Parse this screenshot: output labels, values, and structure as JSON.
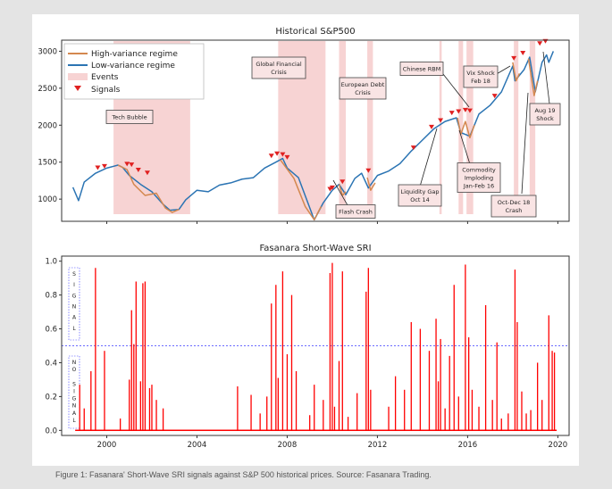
{
  "caption": "Figure 1: Fasanara' Short-Wave SRI signals against S&P 500 historical prices.  Source: Fasanara Trading.",
  "colors": {
    "high_variance": "#d4884f",
    "low_variance": "#2b74b3",
    "events": "#f7d3d3",
    "signals": "#e02020",
    "sri": "#ff0000",
    "threshold": "#3b3bff"
  },
  "chart_data": [
    {
      "type": "line",
      "title": "Historical S&P500",
      "xlim": [
        1998,
        2020.5
      ],
      "ylim": [
        700,
        3150
      ],
      "yticks": [
        1000,
        1500,
        2000,
        2500,
        3000
      ],
      "legend": {
        "placement": "top-left",
        "entries": [
          "High-variance regime",
          "Low-variance regime",
          "Events",
          "Signals"
        ]
      },
      "series": [
        {
          "name": "Low-variance regime",
          "points": [
            [
              1998.5,
              1160
            ],
            [
              1998.75,
              980
            ],
            [
              1999.0,
              1230
            ],
            [
              1999.5,
              1350
            ],
            [
              2000.0,
              1420
            ],
            [
              2000.5,
              1460
            ],
            [
              2000.7,
              1430
            ],
            [
              2001.0,
              1320
            ],
            [
              2001.5,
              1200
            ],
            [
              2002.0,
              1100
            ],
            [
              2002.5,
              930
            ],
            [
              2002.8,
              850
            ],
            [
              2003.2,
              860
            ],
            [
              2003.5,
              990
            ],
            [
              2004.0,
              1120
            ],
            [
              2004.5,
              1100
            ],
            [
              2005.0,
              1190
            ],
            [
              2005.5,
              1220
            ],
            [
              2006.0,
              1270
            ],
            [
              2006.5,
              1290
            ],
            [
              2007.0,
              1420
            ],
            [
              2007.5,
              1500
            ],
            [
              2007.8,
              1550
            ],
            [
              2008.0,
              1420
            ],
            [
              2008.5,
              1290
            ],
            [
              2009.2,
              720
            ],
            [
              2009.6,
              950
            ],
            [
              2010.0,
              1120
            ],
            [
              2010.3,
              1200
            ],
            [
              2010.6,
              1060
            ],
            [
              2011.0,
              1280
            ],
            [
              2011.3,
              1350
            ],
            [
              2011.6,
              1150
            ],
            [
              2012.0,
              1320
            ],
            [
              2012.5,
              1380
            ],
            [
              2013.0,
              1480
            ],
            [
              2013.5,
              1650
            ],
            [
              2014.0,
              1800
            ],
            [
              2014.5,
              1950
            ],
            [
              2015.0,
              2050
            ],
            [
              2015.5,
              2100
            ],
            [
              2015.7,
              1900
            ],
            [
              2016.1,
              1850
            ],
            [
              2016.5,
              2150
            ],
            [
              2017.0,
              2270
            ],
            [
              2017.5,
              2450
            ],
            [
              2018.0,
              2800
            ],
            [
              2018.1,
              2600
            ],
            [
              2018.5,
              2750
            ],
            [
              2018.75,
              2920
            ],
            [
              2019.0,
              2450
            ],
            [
              2019.3,
              2850
            ],
            [
              2019.5,
              2950
            ],
            [
              2019.6,
              2850
            ],
            [
              2019.8,
              3000
            ]
          ]
        },
        {
          "name": "High-variance regime",
          "segments": [
            [
              [
                2000.5,
                1460
              ],
              [
                2000.9,
                1400
              ],
              [
                2001.2,
                1200
              ],
              [
                2001.7,
                1050
              ],
              [
                2002.2,
                1080
              ],
              [
                2002.6,
                880
              ],
              [
                2002.9,
                820
              ],
              [
                2003.2,
                860
              ]
            ],
            [
              [
                2007.7,
                1530
              ],
              [
                2008.3,
                1280
              ],
              [
                2008.8,
                900
              ],
              [
                2009.2,
                720
              ],
              [
                2009.5,
                900
              ]
            ],
            [
              [
                2010.3,
                1200
              ],
              [
                2010.45,
                1050
              ],
              [
                2010.6,
                1100
              ]
            ],
            [
              [
                2011.55,
                1290
              ],
              [
                2011.7,
                1120
              ],
              [
                2011.9,
                1220
              ]
            ],
            [
              [
                2015.55,
                2100
              ],
              [
                2015.7,
                1880
              ],
              [
                2015.9,
                2050
              ],
              [
                2016.1,
                1830
              ],
              [
                2016.3,
                2000
              ]
            ],
            [
              [
                2018.0,
                2850
              ],
              [
                2018.15,
                2600
              ],
              [
                2018.3,
                2700
              ]
            ],
            [
              [
                2018.7,
                2900
              ],
              [
                2018.95,
                2400
              ],
              [
                2019.1,
                2600
              ]
            ]
          ]
        }
      ],
      "event_ranges": [
        [
          2000.3,
          2003.7
        ],
        [
          2007.6,
          2009.7
        ],
        [
          2010.3,
          2010.6
        ],
        [
          2011.55,
          2011.8
        ],
        [
          2014.75,
          2014.85
        ],
        [
          2015.6,
          2015.8
        ],
        [
          2015.95,
          2016.25
        ],
        [
          2018.05,
          2018.25
        ],
        [
          2018.75,
          2019.0
        ]
      ],
      "signals": [
        [
          1999.6,
          1370
        ],
        [
          1999.9,
          1390
        ],
        [
          2000.9,
          1420
        ],
        [
          2001.1,
          1410
        ],
        [
          2001.4,
          1340
        ],
        [
          2001.8,
          1300
        ],
        [
          2007.3,
          1530
        ],
        [
          2007.55,
          1560
        ],
        [
          2007.8,
          1550
        ],
        [
          2008.0,
          1510
        ],
        [
          2009.9,
          1080
        ],
        [
          2010.0,
          1100
        ],
        [
          2010.45,
          1180
        ],
        [
          2011.6,
          1330
        ],
        [
          2013.6,
          1640
        ],
        [
          2014.4,
          1920
        ],
        [
          2014.8,
          2010
        ],
        [
          2015.3,
          2110
        ],
        [
          2015.6,
          2130
        ],
        [
          2015.9,
          2150
        ],
        [
          2016.1,
          2140
        ],
        [
          2017.2,
          2340
        ],
        [
          2018.05,
          2850
        ],
        [
          2018.45,
          2920
        ],
        [
          2019.2,
          3050
        ],
        [
          2019.45,
          3080
        ]
      ],
      "annotations": [
        {
          "lines": [
            "Tech Bubble"
          ]
        },
        {
          "lines": [
            "Global Financial",
            "Crisis"
          ]
        },
        {
          "lines": [
            "European Debt",
            "Crisis"
          ]
        },
        {
          "lines": [
            "Chinese RBM"
          ]
        },
        {
          "lines": [
            "Vix Shock",
            "Feb 18"
          ]
        },
        {
          "lines": [
            "Aug 19",
            "Shock"
          ]
        },
        {
          "lines": [
            "Flash Crash"
          ]
        },
        {
          "lines": [
            "Liquidity Gap",
            "Oct 14"
          ]
        },
        {
          "lines": [
            "Commodity",
            "Imploding",
            "Jan-Feb 16"
          ]
        },
        {
          "lines": [
            "Oct-Dec 18",
            "Crash"
          ]
        }
      ]
    },
    {
      "type": "line",
      "title": "Fasanara Short-Wave SRI",
      "xlim": [
        1998,
        2020.5
      ],
      "ylim": [
        -0.03,
        1.03
      ],
      "yticks": [
        0.0,
        0.2,
        0.4,
        0.6,
        0.8,
        1.0
      ],
      "xticks": [
        2000,
        2004,
        2008,
        2012,
        2016,
        2020
      ],
      "threshold": 0.5,
      "zone_labels": [
        "SIGNAL",
        "NO SIGNAL"
      ],
      "spikes": [
        [
          1998.8,
          0.27
        ],
        [
          1999.0,
          0.13
        ],
        [
          1999.3,
          0.35
        ],
        [
          1999.5,
          0.96
        ],
        [
          1999.9,
          0.47
        ],
        [
          2000.6,
          0.07
        ],
        [
          2001.0,
          0.3
        ],
        [
          2001.1,
          0.71
        ],
        [
          2001.2,
          0.51
        ],
        [
          2001.3,
          0.88
        ],
        [
          2001.5,
          0.29
        ],
        [
          2001.6,
          0.87
        ],
        [
          2001.7,
          0.88
        ],
        [
          2001.9,
          0.25
        ],
        [
          2002.0,
          0.27
        ],
        [
          2002.2,
          0.18
        ],
        [
          2002.5,
          0.13
        ],
        [
          2005.8,
          0.26
        ],
        [
          2006.4,
          0.21
        ],
        [
          2006.8,
          0.1
        ],
        [
          2007.1,
          0.2
        ],
        [
          2007.3,
          0.75
        ],
        [
          2007.5,
          0.86
        ],
        [
          2007.6,
          0.31
        ],
        [
          2007.8,
          0.94
        ],
        [
          2008.0,
          0.45
        ],
        [
          2008.2,
          0.8
        ],
        [
          2008.4,
          0.35
        ],
        [
          2009.0,
          0.09
        ],
        [
          2009.2,
          0.27
        ],
        [
          2009.6,
          0.18
        ],
        [
          2009.9,
          0.93
        ],
        [
          2010.0,
          0.99
        ],
        [
          2010.1,
          0.14
        ],
        [
          2010.3,
          0.41
        ],
        [
          2010.45,
          0.94
        ],
        [
          2010.7,
          0.08
        ],
        [
          2011.1,
          0.22
        ],
        [
          2011.5,
          0.82
        ],
        [
          2011.6,
          0.96
        ],
        [
          2011.7,
          0.24
        ],
        [
          2012.5,
          0.14
        ],
        [
          2012.8,
          0.32
        ],
        [
          2013.2,
          0.24
        ],
        [
          2013.5,
          0.64
        ],
        [
          2013.9,
          0.6
        ],
        [
          2014.3,
          0.47
        ],
        [
          2014.6,
          0.66
        ],
        [
          2014.7,
          0.29
        ],
        [
          2014.8,
          0.54
        ],
        [
          2015.0,
          0.13
        ],
        [
          2015.2,
          0.44
        ],
        [
          2015.4,
          0.86
        ],
        [
          2015.6,
          0.2
        ],
        [
          2015.9,
          0.98
        ],
        [
          2016.05,
          0.55
        ],
        [
          2016.2,
          0.24
        ],
        [
          2016.5,
          0.14
        ],
        [
          2016.8,
          0.74
        ],
        [
          2017.1,
          0.18
        ],
        [
          2017.3,
          0.52
        ],
        [
          2017.5,
          0.07
        ],
        [
          2017.8,
          0.1
        ],
        [
          2018.1,
          0.95
        ],
        [
          2018.2,
          0.64
        ],
        [
          2018.4,
          0.23
        ],
        [
          2018.6,
          0.1
        ],
        [
          2018.8,
          0.12
        ],
        [
          2019.1,
          0.4
        ],
        [
          2019.3,
          0.18
        ],
        [
          2019.6,
          0.68
        ],
        [
          2019.75,
          0.47
        ],
        [
          2019.85,
          0.46
        ]
      ]
    }
  ]
}
